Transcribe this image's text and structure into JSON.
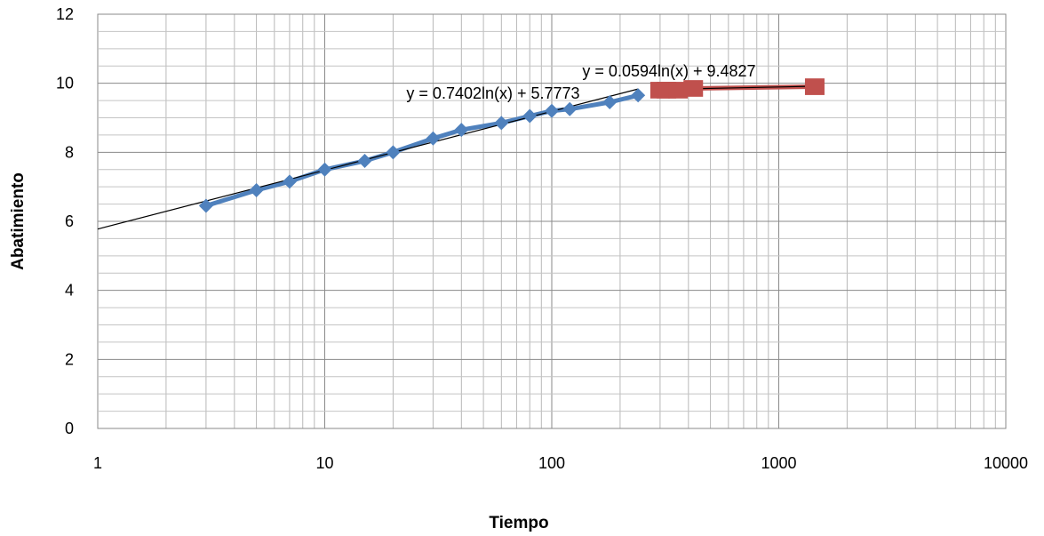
{
  "chart_data": {
    "type": "scatter",
    "xlabel": "Tiempo",
    "ylabel": "Abatimiento",
    "x_scale": "log",
    "xlim": [
      1,
      10000
    ],
    "ylim": [
      0,
      12
    ],
    "x_ticks": [
      "1",
      "10",
      "100",
      "1000",
      "10000"
    ],
    "y_ticks": [
      "0",
      "2",
      "4",
      "6",
      "8",
      "10",
      "12"
    ],
    "grid": true,
    "series": [
      {
        "color": "#4f81bd",
        "marker": "diamond",
        "x": [
          3,
          5,
          7,
          10,
          15,
          20,
          30,
          40,
          60,
          80,
          100,
          120,
          180,
          240
        ],
        "y": [
          6.45,
          6.9,
          7.15,
          7.5,
          7.75,
          8.0,
          8.4,
          8.65,
          8.85,
          9.05,
          9.2,
          9.25,
          9.45,
          9.65
        ]
      },
      {
        "color": "#c0504d",
        "marker": "square",
        "x": [
          300,
          320,
          360,
          420,
          1440
        ],
        "y": [
          9.8,
          9.8,
          9.8,
          9.85,
          9.9
        ]
      }
    ],
    "trendlines": [
      {
        "label": "y = 0.7402ln(x) + 5.7773",
        "slope": 0.7402,
        "intercept": 5.7773,
        "x_range": [
          1,
          240
        ],
        "color": "#000000"
      },
      {
        "label": "y = 0.0594ln(x) + 9.4827",
        "slope": 0.0594,
        "intercept": 9.4827,
        "x_range": [
          300,
          1440
        ],
        "color": "#000000"
      }
    ]
  }
}
